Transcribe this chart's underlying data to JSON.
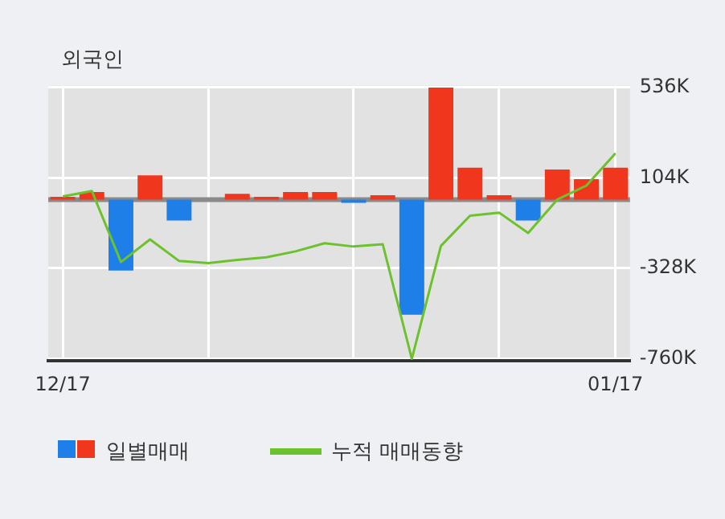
{
  "chart_data": {
    "type": "bar",
    "title": "외국인",
    "categories": [
      "12/17",
      null,
      null,
      null,
      null,
      null,
      null,
      null,
      null,
      null,
      null,
      null,
      null,
      null,
      null,
      null,
      null,
      null,
      null,
      "01/17"
    ],
    "series": [
      {
        "name": "일별매매",
        "colors": [
          "#f0361c",
          "#f0361c",
          "#1f7fe8",
          "#f0361c",
          "#1f7fe8",
          "#f0361c",
          "#f0361c",
          "#f0361c",
          "#f0361c",
          "#f0361c",
          "#1f7fe8",
          "#f0361c",
          "#1f7fe8",
          "#f0361c",
          "#f0361c",
          "#f0361c",
          "#1f7fe8",
          "#f0361c",
          "#f0361c",
          "#f0361c"
        ],
        "values": [
          13,
          36,
          -339,
          116,
          -100,
          0,
          28,
          13,
          36,
          36,
          -15,
          21,
          -550,
          535,
          152,
          21,
          -100,
          144,
          98,
          152
        ]
      },
      {
        "name": "누적 매매동향",
        "type": "line",
        "color": "#6cc22c",
        "values": [
          15,
          41,
          -298,
          -190,
          -293,
          -303,
          -288,
          -275,
          -247,
          -208,
          -224,
          -213,
          -760,
          -221,
          -77,
          -62,
          -159,
          0,
          67,
          221
        ]
      }
    ],
    "ylim": [
      -770,
      545
    ],
    "yticks": [
      {
        "value": 536,
        "label": "536K"
      },
      {
        "value": 104,
        "label": "104K"
      },
      {
        "value": -328,
        "label": "-328K"
      },
      {
        "value": -760,
        "label": "-760K"
      }
    ],
    "ref_lines": [
      {
        "axis": "y",
        "value": 0,
        "color": "#8a8a8a"
      }
    ],
    "grid": true,
    "legend": "bottom",
    "marker": "none",
    "line_style": "solid"
  }
}
